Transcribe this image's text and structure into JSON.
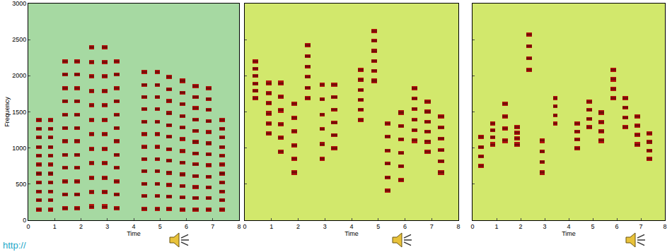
{
  "chart_data": [
    {
      "type": "heatmap",
      "x_label": "Time",
      "y_label": "Frequency",
      "xlim": [
        0,
        8
      ],
      "ylim": [
        0,
        3000
      ],
      "xticks": [
        0,
        1,
        2,
        3,
        4,
        5,
        6,
        7,
        8
      ],
      "yticks": [
        0,
        500,
        1000,
        1500,
        2000,
        2500,
        3000
      ],
      "color": "#b8140c",
      "notes": [
        {
          "time": [
            0.3,
            0.5
          ],
          "freq": [
            150,
            1390
          ],
          "lines": 11
        },
        {
          "time": [
            0.75,
            0.95
          ],
          "freq": [
            150,
            1390
          ],
          "lines": 11
        },
        {
          "time": [
            1.3,
            1.5
          ],
          "freq": [
            170,
            2200
          ],
          "lines": 12
        },
        {
          "time": [
            1.75,
            1.95
          ],
          "freq": [
            170,
            2200
          ],
          "lines": 12
        },
        {
          "time": [
            2.3,
            2.5
          ],
          "freq": [
            190,
            2390
          ],
          "lines": 12
        },
        {
          "time": [
            2.8,
            3.0
          ],
          "freq": [
            190,
            2390
          ],
          "lines": 12
        },
        {
          "time": [
            3.25,
            3.45
          ],
          "freq": [
            170,
            2200
          ],
          "lines": 12
        },
        {
          "time": [
            4.3,
            4.5
          ],
          "freq": [
            160,
            2050
          ],
          "lines": 12
        },
        {
          "time": [
            4.8,
            5.0
          ],
          "freq": [
            160,
            2050
          ],
          "lines": 12
        },
        {
          "time": [
            5.25,
            5.45
          ],
          "freq": [
            160,
            1980
          ],
          "lines": 12
        },
        {
          "time": [
            5.75,
            5.95
          ],
          "freq": [
            150,
            1930
          ],
          "lines": 12
        },
        {
          "time": [
            6.25,
            6.45
          ],
          "freq": [
            150,
            1860
          ],
          "lines": 12
        },
        {
          "time": [
            6.75,
            6.95
          ],
          "freq": [
            150,
            1830
          ],
          "lines": 12
        },
        {
          "time": [
            7.25,
            7.45
          ],
          "freq": [
            150,
            1390
          ],
          "lines": 11
        }
      ]
    },
    {
      "type": "heatmap",
      "x_label": "Time",
      "xlim": [
        0,
        8
      ],
      "ylim": [
        0,
        3000
      ],
      "xticks": [
        0,
        1,
        2,
        3,
        4,
        5,
        6,
        7,
        8
      ],
      "yticks": [
        0,
        500,
        1000,
        1500,
        2000,
        2500,
        3000
      ],
      "tick_labels": "x",
      "color": "#b8140c",
      "notes": [
        {
          "time": [
            0.3,
            0.5
          ],
          "freq": [
            1690,
            2200
          ],
          "lines": 6
        },
        {
          "time": [
            0.8,
            1.0
          ],
          "freq": [
            1200,
            1900
          ],
          "lines": 6
        },
        {
          "time": [
            1.25,
            1.45
          ],
          "freq": [
            950,
            1900
          ],
          "lines": 6
        },
        {
          "time": [
            1.75,
            1.95
          ],
          "freq": [
            660,
            1610
          ],
          "lines": 6
        },
        {
          "time": [
            2.25,
            2.45
          ],
          "freq": [
            1690,
            2420
          ],
          "lines": 6
        },
        {
          "time": [
            2.8,
            3.0
          ],
          "freq": [
            850,
            1880
          ],
          "lines": 6
        },
        {
          "time": [
            3.25,
            3.45
          ],
          "freq": [
            1000,
            1880
          ],
          "lines": 6
        },
        {
          "time": [
            4.25,
            4.45
          ],
          "freq": [
            1390,
            2080
          ],
          "lines": 6
        },
        {
          "time": [
            4.75,
            4.95
          ],
          "freq": [
            1930,
            2620
          ],
          "lines": 6
        },
        {
          "time": [
            5.25,
            5.45
          ],
          "freq": [
            410,
            1340
          ],
          "lines": 6
        },
        {
          "time": [
            5.75,
            5.95
          ],
          "freq": [
            560,
            1490
          ],
          "lines": 6
        },
        {
          "time": [
            6.25,
            6.45
          ],
          "freq": [
            1100,
            1830
          ],
          "lines": 6
        },
        {
          "time": [
            6.75,
            6.95
          ],
          "freq": [
            950,
            1640
          ],
          "lines": 6
        },
        {
          "time": [
            7.25,
            7.45
          ],
          "freq": [
            660,
            1440
          ],
          "lines": 6
        }
      ]
    },
    {
      "type": "heatmap",
      "x_label": "Time",
      "xlim": [
        0,
        8
      ],
      "ylim": [
        0,
        3000
      ],
      "xticks": [
        0,
        1,
        2,
        3,
        4,
        5,
        6,
        7,
        8
      ],
      "yticks": [
        0,
        500,
        1000,
        1500,
        2000,
        2500,
        3000
      ],
      "tick_labels": "x",
      "color": "#b8140c",
      "notes": [
        {
          "time": [
            0.25,
            0.45
          ],
          "freq": [
            750,
            1150
          ],
          "lines": 4
        },
        {
          "time": [
            0.75,
            0.95
          ],
          "freq": [
            1050,
            1340
          ],
          "lines": 4
        },
        {
          "time": [
            1.25,
            1.45
          ],
          "freq": [
            1100,
            1610
          ],
          "lines": 4
        },
        {
          "time": [
            1.75,
            1.95
          ],
          "freq": [
            1050,
            1290
          ],
          "lines": 4
        },
        {
          "time": [
            2.25,
            2.45
          ],
          "freq": [
            2080,
            2570
          ],
          "lines": 4
        },
        {
          "time": [
            2.8,
            3.0
          ],
          "freq": [
            660,
            1100
          ],
          "lines": 4
        },
        {
          "time": [
            3.35,
            3.55
          ],
          "freq": [
            1340,
            1690
          ],
          "lines": 4
        },
        {
          "time": [
            4.25,
            4.45
          ],
          "freq": [
            1000,
            1340
          ],
          "lines": 4
        },
        {
          "time": [
            4.75,
            4.95
          ],
          "freq": [
            1290,
            1640
          ],
          "lines": 4
        },
        {
          "time": [
            5.25,
            5.45
          ],
          "freq": [
            1100,
            1490
          ],
          "lines": 4
        },
        {
          "time": [
            5.75,
            5.95
          ],
          "freq": [
            1690,
            2080
          ],
          "lines": 4
        },
        {
          "time": [
            6.25,
            6.45
          ],
          "freq": [
            1290,
            1690
          ],
          "lines": 4
        },
        {
          "time": [
            6.75,
            6.95
          ],
          "freq": [
            1050,
            1440
          ],
          "lines": 4
        },
        {
          "time": [
            7.25,
            7.45
          ],
          "freq": [
            850,
            1200
          ],
          "lines": 4
        }
      ]
    }
  ],
  "caption": "http://"
}
